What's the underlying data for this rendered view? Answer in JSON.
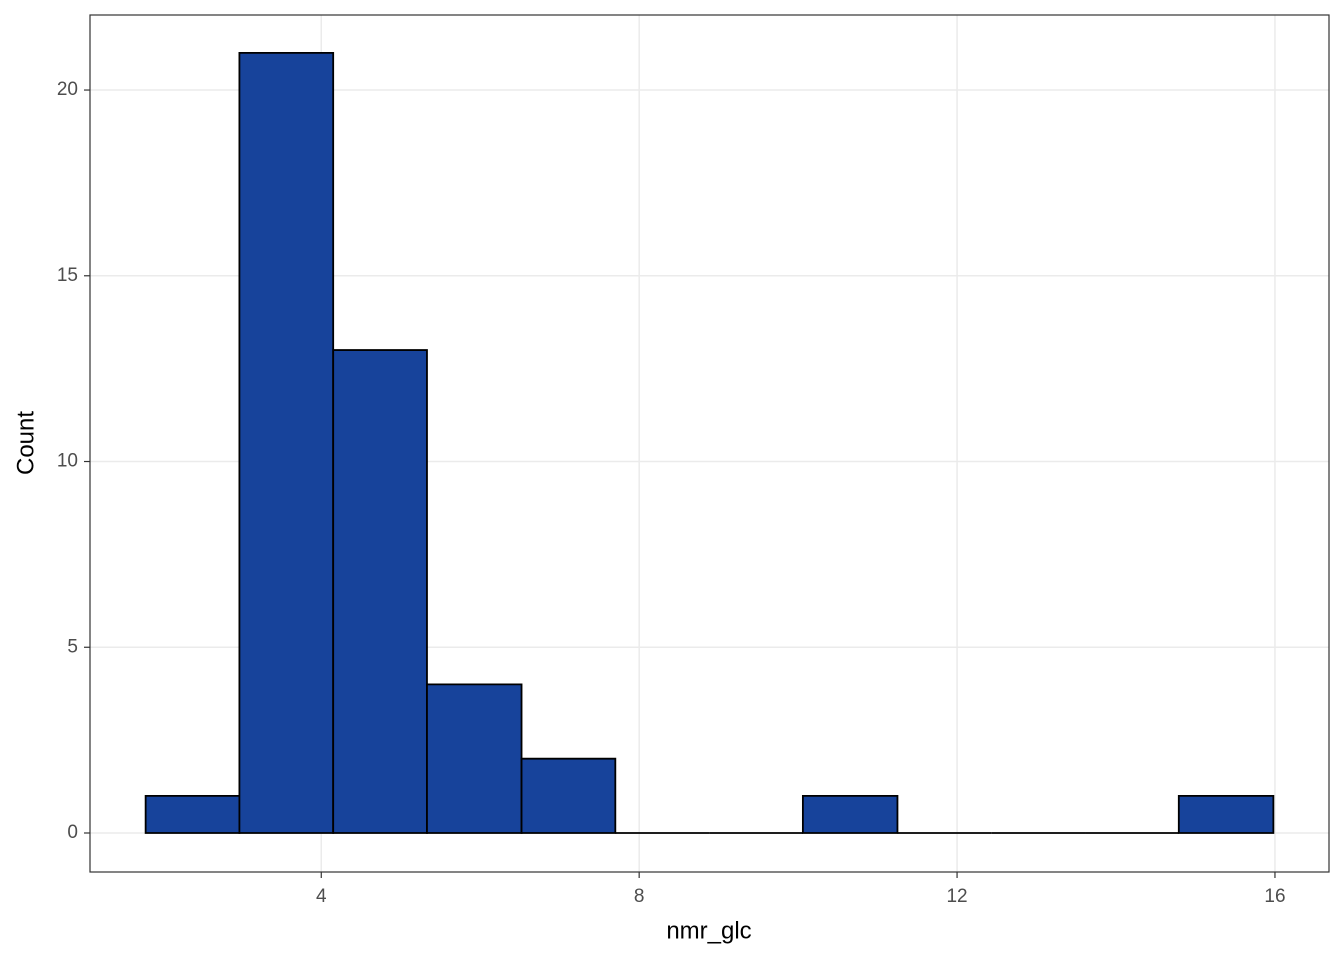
{
  "chart_data": {
    "type": "histogram",
    "x_label": "nmr_glc",
    "y_label": "Count",
    "bins": [
      1.79,
      2.97,
      4.15,
      5.33,
      6.52,
      7.7,
      8.88,
      10.06,
      11.25,
      12.43,
      13.61,
      14.79,
      15.98
    ],
    "values": [
      1,
      21,
      13,
      4,
      2,
      0,
      0,
      1,
      0,
      0,
      0,
      1
    ],
    "color": "#17439b",
    "xlim": [
      1.09,
      16.68
    ],
    "xticks": [
      4,
      8,
      12,
      16
    ],
    "ylim": [
      -1.05,
      22.02
    ],
    "yticks": [
      0,
      5,
      10,
      15,
      20
    ],
    "grid": true
  }
}
